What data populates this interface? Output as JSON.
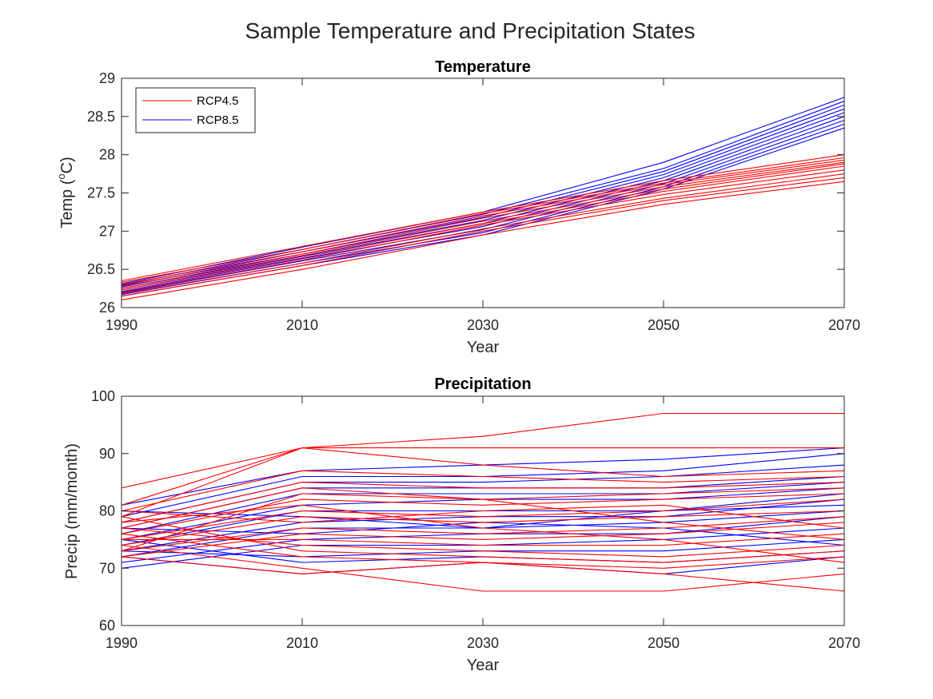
{
  "figure": {
    "title": "Sample Temperature and Precipitation States"
  },
  "colors": {
    "RCP4.5": "#ff0000",
    "RCP8.5": "#0000ff",
    "axis": "#262626",
    "background": "#ffffff"
  },
  "chart_data": [
    {
      "type": "line",
      "title": "Temperature",
      "xlabel": "Year",
      "ylabel": "Temp (°C)",
      "ylabel_parts": {
        "prefix": "Temp (",
        "superscript": "o",
        "suffix": "C)"
      },
      "xlim": [
        1990,
        2070
      ],
      "ylim": [
        26,
        29
      ],
      "xticks": [
        1990,
        2010,
        2030,
        2050,
        2070
      ],
      "yticks": [
        26,
        26.5,
        27,
        27.5,
        28,
        28.5,
        29
      ],
      "ytick_labels": [
        "26",
        "26.5",
        "27",
        "27.5",
        "28",
        "28.5",
        "29"
      ],
      "grid": false,
      "legend": {
        "location": "top-left",
        "entries": [
          {
            "label": "RCP4.5",
            "color": "#ff0000"
          },
          {
            "label": "RCP8.5",
            "color": "#0000ff"
          }
        ]
      },
      "x": [
        1990,
        2010,
        2030,
        2050,
        2070
      ],
      "series": [
        {
          "group": "RCP4.5",
          "values": [
            26.1,
            26.5,
            26.95,
            27.35,
            27.65
          ]
        },
        {
          "group": "RCP4.5",
          "values": [
            26.15,
            26.55,
            27.0,
            27.4,
            27.7
          ]
        },
        {
          "group": "RCP4.5",
          "values": [
            26.18,
            26.58,
            27.03,
            27.43,
            27.75
          ]
        },
        {
          "group": "RCP4.5",
          "values": [
            26.2,
            26.62,
            27.08,
            27.48,
            27.8
          ]
        },
        {
          "group": "RCP4.5",
          "values": [
            26.23,
            26.65,
            27.1,
            27.52,
            27.85
          ]
        },
        {
          "group": "RCP4.5",
          "values": [
            26.25,
            26.68,
            27.13,
            27.55,
            27.88
          ]
        },
        {
          "group": "RCP4.5",
          "values": [
            26.28,
            26.7,
            27.17,
            27.58,
            27.9
          ]
        },
        {
          "group": "RCP4.5",
          "values": [
            26.3,
            26.73,
            27.2,
            27.61,
            27.93
          ]
        },
        {
          "group": "RCP4.5",
          "values": [
            26.33,
            26.76,
            27.23,
            27.63,
            27.96
          ]
        },
        {
          "group": "RCP4.5",
          "values": [
            26.35,
            26.8,
            27.25,
            27.66,
            28.0
          ]
        },
        {
          "group": "RCP8.5",
          "values": [
            26.15,
            26.55,
            26.95,
            27.55,
            28.35
          ]
        },
        {
          "group": "RCP8.5",
          "values": [
            26.17,
            26.58,
            26.98,
            27.58,
            28.4
          ]
        },
        {
          "group": "RCP8.5",
          "values": [
            26.19,
            26.61,
            27.02,
            27.62,
            28.45
          ]
        },
        {
          "group": "RCP8.5",
          "values": [
            26.21,
            26.64,
            27.06,
            27.66,
            28.5
          ]
        },
        {
          "group": "RCP8.5",
          "values": [
            26.23,
            26.67,
            27.1,
            27.7,
            28.55
          ]
        },
        {
          "group": "RCP8.5",
          "values": [
            26.25,
            26.7,
            27.14,
            27.74,
            28.6
          ]
        },
        {
          "group": "RCP8.5",
          "values": [
            26.27,
            26.73,
            27.18,
            27.78,
            28.65
          ]
        },
        {
          "group": "RCP8.5",
          "values": [
            26.29,
            26.76,
            27.22,
            27.82,
            28.7
          ]
        },
        {
          "group": "RCP8.5",
          "values": [
            26.31,
            26.79,
            27.25,
            27.9,
            28.75
          ]
        }
      ]
    },
    {
      "type": "line",
      "title": "Precipitation",
      "xlabel": "Year",
      "ylabel": "Precip (mm/month)",
      "xlim": [
        1990,
        2070
      ],
      "ylim": [
        60,
        100
      ],
      "xticks": [
        1990,
        2010,
        2030,
        2050,
        2070
      ],
      "yticks": [
        60,
        70,
        80,
        90,
        100
      ],
      "ytick_labels": [
        "60",
        "70",
        "80",
        "90",
        "100"
      ],
      "grid": false,
      "x": [
        1990,
        2010,
        2030,
        2050,
        2070
      ],
      "series": [
        {
          "group": "RCP4.5",
          "values": [
            84,
            91,
            93,
            97,
            97
          ]
        },
        {
          "group": "RCP4.5",
          "values": [
            81,
            91,
            91,
            91,
            91
          ]
        },
        {
          "group": "RCP4.5",
          "values": [
            79,
            91,
            88,
            86,
            87
          ]
        },
        {
          "group": "RCP4.5",
          "values": [
            80,
            87,
            86,
            85,
            86
          ]
        },
        {
          "group": "RCP4.5",
          "values": [
            78,
            85,
            84,
            84,
            85
          ]
        },
        {
          "group": "RCP4.5",
          "values": [
            77,
            84,
            82,
            83,
            84
          ]
        },
        {
          "group": "RCP4.5",
          "values": [
            76,
            82,
            81,
            82,
            83
          ]
        },
        {
          "group": "RCP4.5",
          "values": [
            75,
            80,
            79,
            80,
            82
          ]
        },
        {
          "group": "RCP4.5",
          "values": [
            74,
            79,
            78,
            79,
            80
          ]
        },
        {
          "group": "RCP4.5",
          "values": [
            73,
            77,
            76,
            77,
            79
          ]
        },
        {
          "group": "RCP4.5",
          "values": [
            72,
            76,
            75,
            76,
            78
          ]
        },
        {
          "group": "RCP4.5",
          "values": [
            75,
            75,
            74,
            74,
            76
          ]
        },
        {
          "group": "RCP4.5",
          "values": [
            77,
            74,
            73,
            72,
            74
          ]
        },
        {
          "group": "RCP4.5",
          "values": [
            79,
            73,
            72,
            71,
            73
          ]
        },
        {
          "group": "RCP4.5",
          "values": [
            76,
            72,
            71,
            70,
            72
          ]
        },
        {
          "group": "RCP4.5",
          "values": [
            74,
            70,
            66,
            66,
            69
          ]
        },
        {
          "group": "RCP4.5",
          "values": [
            72,
            69,
            71,
            69,
            66
          ]
        },
        {
          "group": "RCP4.5",
          "values": [
            78,
            81,
            77,
            75,
            71
          ]
        },
        {
          "group": "RCP4.5",
          "values": [
            80,
            78,
            80,
            81,
            77
          ]
        },
        {
          "group": "RCP4.5",
          "values": [
            73,
            83,
            82,
            78,
            75
          ]
        },
        {
          "group": "RCP8.5",
          "values": [
            81,
            87,
            88,
            89,
            91
          ]
        },
        {
          "group": "RCP8.5",
          "values": [
            79,
            86,
            86,
            87,
            90
          ]
        },
        {
          "group": "RCP8.5",
          "values": [
            78,
            85,
            85,
            86,
            88
          ]
        },
        {
          "group": "RCP8.5",
          "values": [
            77,
            84,
            84,
            84,
            86
          ]
        },
        {
          "group": "RCP8.5",
          "values": [
            76,
            83,
            83,
            83,
            85
          ]
        },
        {
          "group": "RCP8.5",
          "values": [
            75,
            81,
            82,
            82,
            84
          ]
        },
        {
          "group": "RCP8.5",
          "values": [
            74,
            80,
            80,
            80,
            83
          ]
        },
        {
          "group": "RCP8.5",
          "values": [
            73,
            78,
            79,
            79,
            82
          ]
        },
        {
          "group": "RCP8.5",
          "values": [
            72,
            77,
            77,
            78,
            80
          ]
        },
        {
          "group": "RCP8.5",
          "values": [
            71,
            75,
            76,
            76,
            79
          ]
        },
        {
          "group": "RCP8.5",
          "values": [
            70,
            74,
            74,
            75,
            77
          ]
        },
        {
          "group": "RCP8.5",
          "values": [
            73,
            72,
            73,
            73,
            75
          ]
        },
        {
          "group": "RCP8.5",
          "values": [
            75,
            71,
            72,
            71,
            73
          ]
        },
        {
          "group": "RCP8.5",
          "values": [
            72,
            69,
            71,
            69,
            72
          ]
        },
        {
          "group": "RCP8.5",
          "values": [
            77,
            76,
            78,
            77,
            74
          ]
        },
        {
          "group": "RCP8.5",
          "values": [
            80,
            79,
            77,
            80,
            81
          ]
        }
      ]
    }
  ]
}
